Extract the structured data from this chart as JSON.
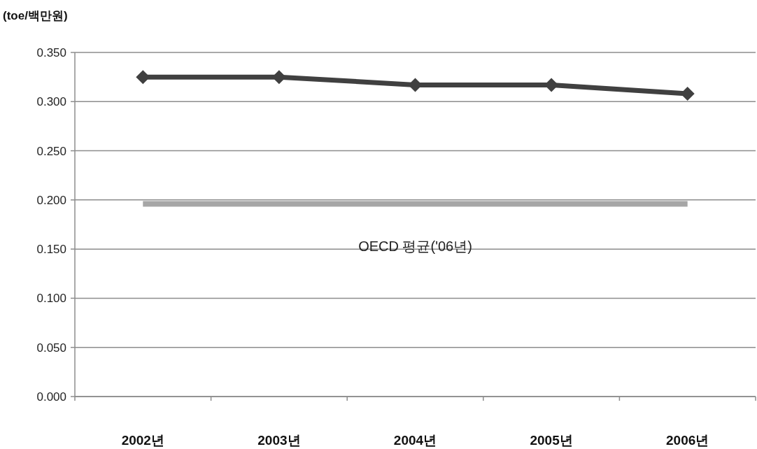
{
  "chart_data": {
    "type": "line",
    "ylabel": "(toe/백만원)",
    "categories": [
      "2002년",
      "2003년",
      "2004년",
      "2005년",
      "2006년"
    ],
    "series": [
      {
        "name": null,
        "color": "#404040",
        "values": [
          0.325,
          0.325,
          0.317,
          0.317,
          0.308
        ],
        "marker": "diamond"
      },
      {
        "name": "OECD 평균('06년)",
        "color": "#a6a6a6",
        "values": [
          0.196,
          0.196,
          0.196,
          0.196,
          0.196
        ],
        "marker": "none"
      }
    ],
    "ylim": [
      0,
      0.35
    ],
    "yticks": [
      {
        "value": 0,
        "label": "0.000"
      },
      {
        "value": 0.05,
        "label": "0.050"
      },
      {
        "value": 0.1,
        "label": "0.100"
      },
      {
        "value": 0.15,
        "label": "0.150"
      },
      {
        "value": 0.2,
        "label": "0.200"
      },
      {
        "value": 0.25,
        "label": "0.250"
      },
      {
        "value": 0.3,
        "label": "0.300"
      },
      {
        "value": 0.35,
        "label": "0.350"
      }
    ],
    "grid": "y",
    "line_style": "solid"
  }
}
